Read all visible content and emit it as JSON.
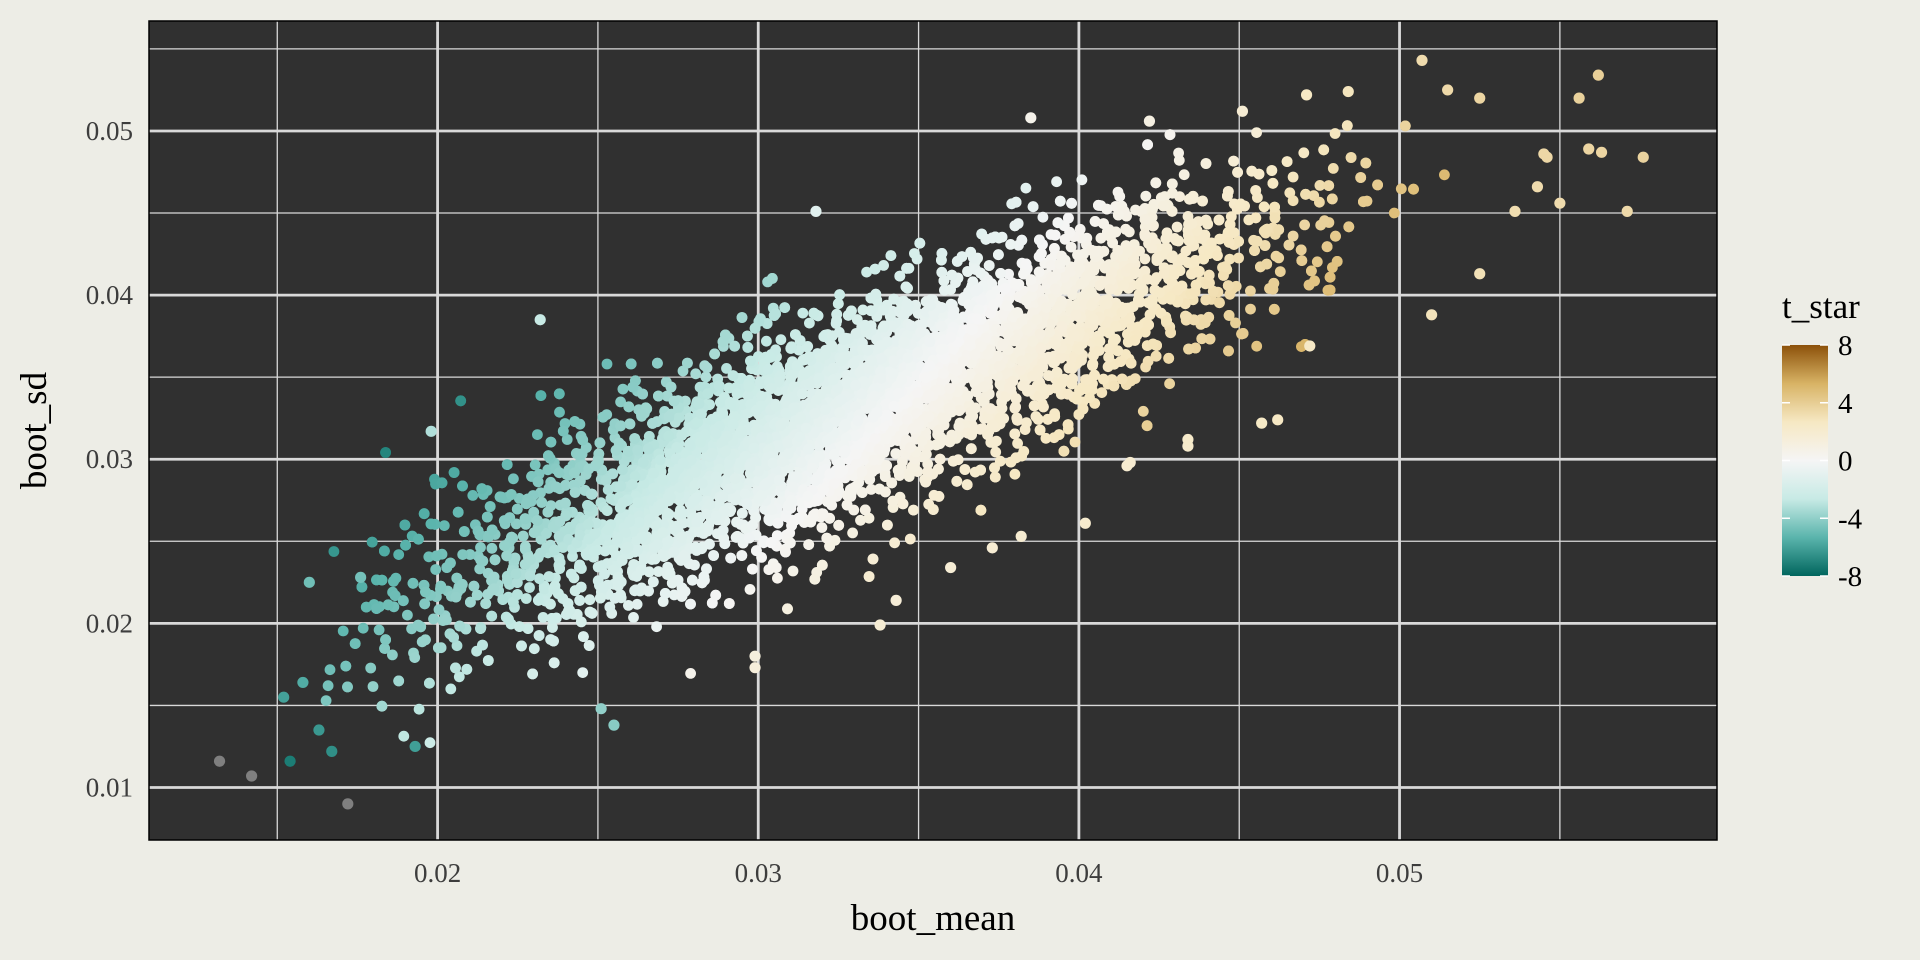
{
  "chart_data": {
    "type": "scatter",
    "title": "",
    "xlabel": "boot_mean",
    "ylabel": "boot_sd",
    "xlim": [
      0.011,
      0.0599
    ],
    "ylim": [
      0.0068,
      0.0567
    ],
    "x_ticks": [
      0.02,
      0.03,
      0.04,
      0.05
    ],
    "x_tick_labels": [
      "0.02",
      "0.03",
      "0.04",
      "0.05"
    ],
    "y_ticks": [
      0.01,
      0.02,
      0.03,
      0.04,
      0.05
    ],
    "y_tick_labels": [
      "0.01",
      "0.02",
      "0.03",
      "0.04",
      "0.05"
    ],
    "grid": true,
    "panel_background": "#303030",
    "grid_color": "#d9d9d9",
    "color_scale": {
      "name": "t_star",
      "type": "diverging",
      "palette": "BrBG",
      "limits": [
        -8,
        8
      ],
      "breaks": [
        8,
        4,
        0,
        -4,
        -8
      ],
      "break_labels": [
        "8",
        "4",
        "0",
        "-4",
        "-8"
      ],
      "colors": [
        "#01665e",
        "#5ab4ac",
        "#c7eae5",
        "#f5f5f5",
        "#f6e8c3",
        "#d8b365",
        "#8c510a"
      ],
      "na_color": "#7f7f7f",
      "legend_position": "right"
    },
    "trend": {
      "description": "boot_sd increases roughly linearly with boot_mean; t_star rises from negative (teal) at low boot_mean to positive (tan) at high boot_mean",
      "cluster_count_approx": 10000
    },
    "points": [
      {
        "x": 0.0132,
        "y": 0.0116,
        "t": null
      },
      {
        "x": 0.0142,
        "y": 0.0107,
        "t": null
      },
      {
        "x": 0.0172,
        "y": 0.009,
        "t": null
      },
      {
        "x": 0.0154,
        "y": 0.0116,
        "t": -7.2
      },
      {
        "x": 0.0152,
        "y": 0.0155,
        "t": -6.0
      },
      {
        "x": 0.0167,
        "y": 0.0122,
        "t": -6.6
      },
      {
        "x": 0.0163,
        "y": 0.0135,
        "t": -6.3
      },
      {
        "x": 0.0158,
        "y": 0.0164,
        "t": -5.6
      },
      {
        "x": 0.016,
        "y": 0.0225,
        "t": -4.8
      },
      {
        "x": 0.0176,
        "y": 0.0228,
        "t": -4.7
      },
      {
        "x": 0.0193,
        "y": 0.0125,
        "t": -6.1
      },
      {
        "x": 0.0232,
        "y": 0.0385,
        "t": -2.6
      },
      {
        "x": 0.0198,
        "y": 0.0317,
        "t": -3.2
      },
      {
        "x": 0.0255,
        "y": 0.0138,
        "t": -4.2
      },
      {
        "x": 0.0251,
        "y": 0.0148,
        "t": -4.0
      },
      {
        "x": 0.0318,
        "y": 0.0451,
        "t": -1.2
      },
      {
        "x": 0.0385,
        "y": 0.0508,
        "t": 0.6
      },
      {
        "x": 0.0422,
        "y": 0.0506,
        "t": 1.0
      },
      {
        "x": 0.0451,
        "y": 0.0512,
        "t": 1.8
      },
      {
        "x": 0.0471,
        "y": 0.0522,
        "t": 2.6
      },
      {
        "x": 0.0484,
        "y": 0.0524,
        "t": 2.8
      },
      {
        "x": 0.0507,
        "y": 0.0543,
        "t": 3.3
      },
      {
        "x": 0.0515,
        "y": 0.0525,
        "t": 3.4
      },
      {
        "x": 0.0525,
        "y": 0.052,
        "t": 3.6
      },
      {
        "x": 0.0556,
        "y": 0.052,
        "t": 3.8
      },
      {
        "x": 0.0562,
        "y": 0.0534,
        "t": 3.9
      },
      {
        "x": 0.0559,
        "y": 0.0489,
        "t": 3.6
      },
      {
        "x": 0.0563,
        "y": 0.0487,
        "t": 3.6
      },
      {
        "x": 0.0576,
        "y": 0.0484,
        "t": 3.7
      },
      {
        "x": 0.0571,
        "y": 0.0451,
        "t": 3.4
      },
      {
        "x": 0.0545,
        "y": 0.0486,
        "t": 3.5
      },
      {
        "x": 0.0546,
        "y": 0.0484,
        "t": 3.5
      },
      {
        "x": 0.055,
        "y": 0.0456,
        "t": 3.3
      },
      {
        "x": 0.0536,
        "y": 0.0451,
        "t": 3.2
      },
      {
        "x": 0.0543,
        "y": 0.0466,
        "t": 3.3
      },
      {
        "x": 0.0525,
        "y": 0.0413,
        "t": 3.0
      },
      {
        "x": 0.051,
        "y": 0.0388,
        "t": 2.9
      },
      {
        "x": 0.0472,
        "y": 0.0369,
        "t": 2.5
      },
      {
        "x": 0.0462,
        "y": 0.0324,
        "t": 2.6
      },
      {
        "x": 0.0457,
        "y": 0.0322,
        "t": 2.5
      },
      {
        "x": 0.0434,
        "y": 0.0308,
        "t": 2.2
      },
      {
        "x": 0.0434,
        "y": 0.0312,
        "t": 2.3
      },
      {
        "x": 0.0415,
        "y": 0.0296,
        "t": 2.0
      },
      {
        "x": 0.0416,
        "y": 0.0298,
        "t": 2.0
      },
      {
        "x": 0.0402,
        "y": 0.0261,
        "t": 2.1
      },
      {
        "x": 0.0382,
        "y": 0.0253,
        "t": 1.9
      },
      {
        "x": 0.0373,
        "y": 0.0246,
        "t": 1.8
      },
      {
        "x": 0.036,
        "y": 0.0234,
        "t": 1.7
      },
      {
        "x": 0.0343,
        "y": 0.0214,
        "t": 1.6
      },
      {
        "x": 0.0338,
        "y": 0.0199,
        "t": 1.7
      },
      {
        "x": 0.0299,
        "y": 0.0173,
        "t": 1.4
      },
      {
        "x": 0.0299,
        "y": 0.018,
        "t": 1.3
      }
    ]
  }
}
